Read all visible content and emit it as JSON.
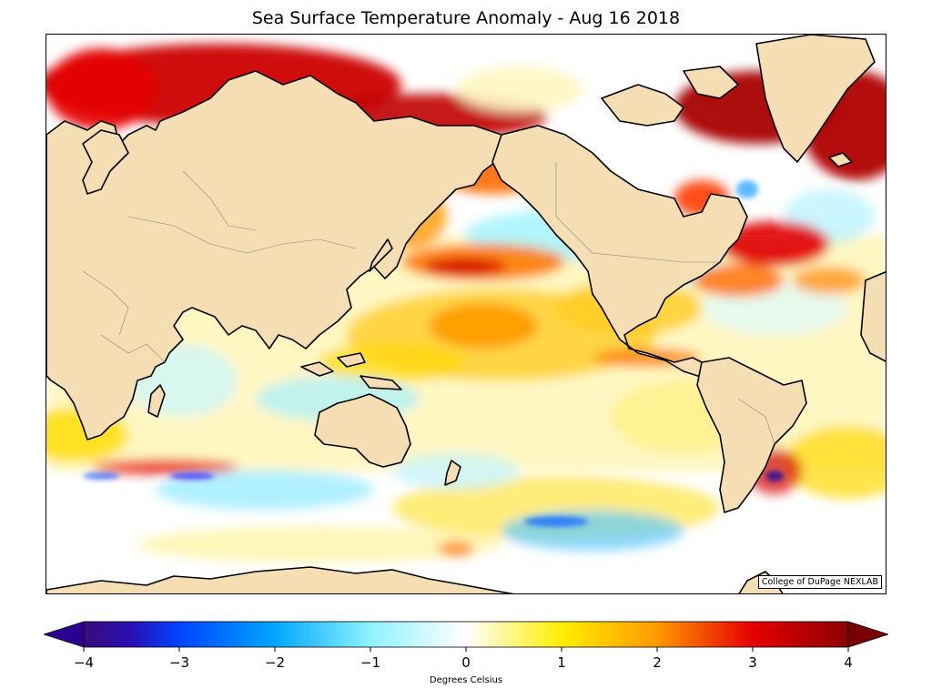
{
  "title": "Sea Surface Temperature Anomaly - Aug 16 2018",
  "credit": "College of DuPage NEXLAB",
  "colorbar": {
    "label": "Degrees Celsius",
    "min": -4,
    "max": 4,
    "ticks": [
      {
        "value": -4,
        "label": "−4"
      },
      {
        "value": -3,
        "label": "−3"
      },
      {
        "value": -2,
        "label": "−2"
      },
      {
        "value": -1,
        "label": "−1"
      },
      {
        "value": 0,
        "label": "0"
      },
      {
        "value": 1,
        "label": "1"
      },
      {
        "value": 2,
        "label": "2"
      },
      {
        "value": 3,
        "label": "3"
      },
      {
        "value": 4,
        "label": "4"
      }
    ],
    "colors": {
      "-4": "#3a0a7a",
      "-3": "#0044ff",
      "-2": "#00a6ff",
      "-1": "#8ef3ff",
      "0": "#ffffff",
      "1": "#ffee00",
      "2": "#ff9900",
      "3": "#e60000",
      "4": "#8b0000"
    }
  },
  "map_colors": {
    "land": "#f5deb3",
    "coast": "#000000",
    "borders": "#888888",
    "ocean_neutral": "#ffffff"
  }
}
